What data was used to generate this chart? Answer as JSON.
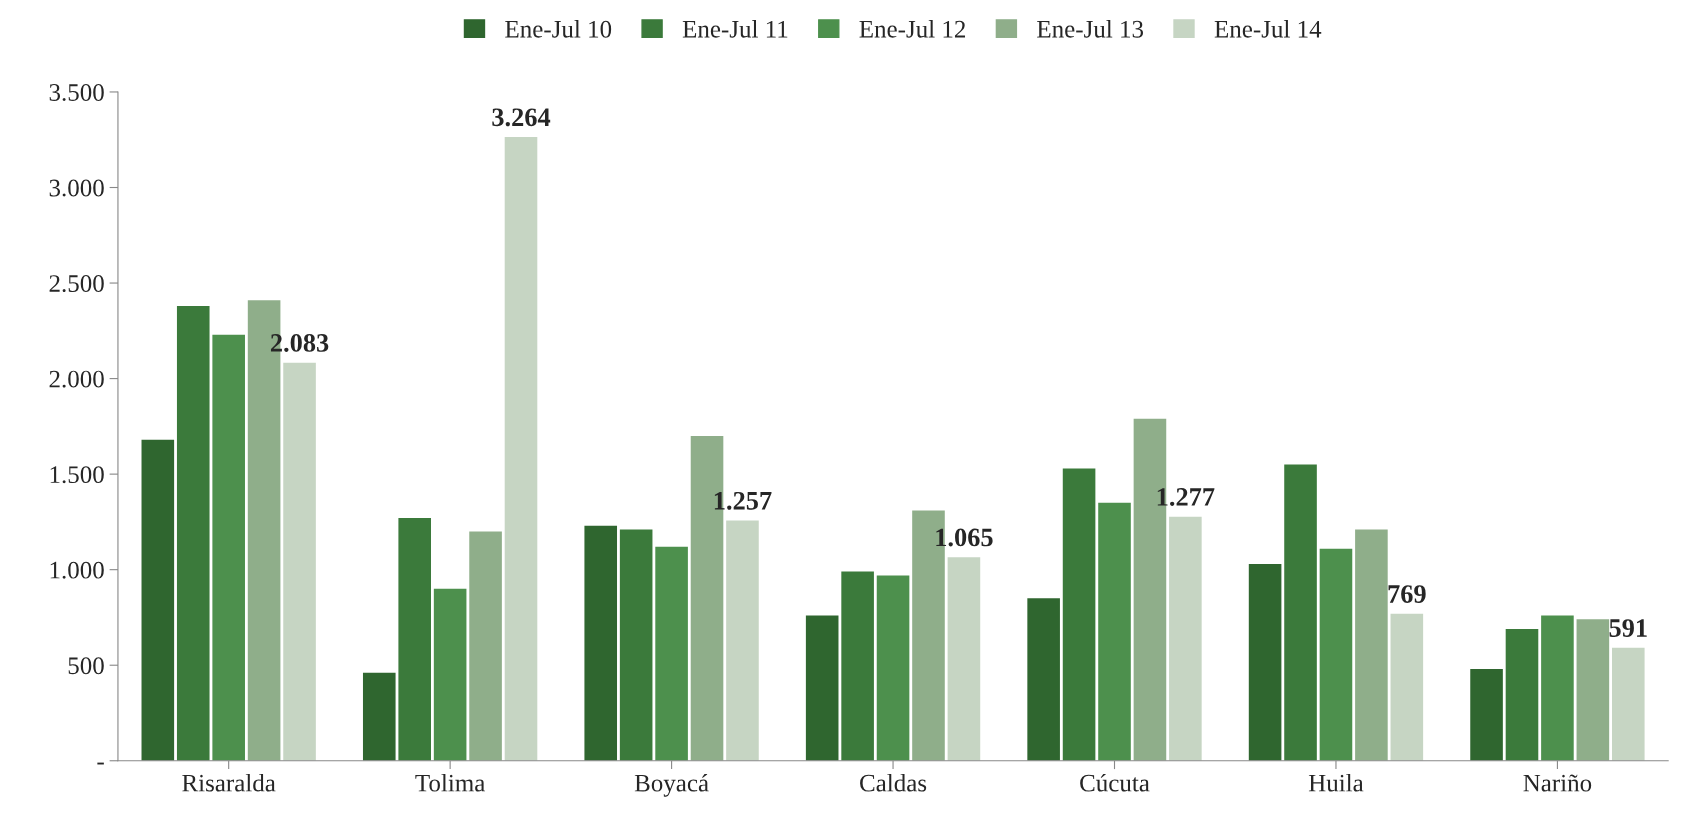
{
  "chart_data": {
    "type": "bar",
    "categories": [
      "Risaralda",
      "Tolima",
      "Boyacá",
      "Caldas",
      "Cúcuta",
      "Huila",
      "Nariño"
    ],
    "series": [
      {
        "name": "Ene-Jul 10",
        "color": "#2f662f",
        "values": [
          1680,
          460,
          1230,
          760,
          850,
          1030,
          480
        ]
      },
      {
        "name": "Ene-Jul 11",
        "color": "#3b7a3b",
        "values": [
          2380,
          1270,
          1210,
          990,
          1530,
          1550,
          690
        ]
      },
      {
        "name": "Ene-Jul 12",
        "color": "#4d904d",
        "values": [
          2230,
          900,
          1120,
          970,
          1350,
          1110,
          760
        ]
      },
      {
        "name": "Ene-Jul 13",
        "color": "#8fae8a",
        "values": [
          2410,
          1200,
          1700,
          1310,
          1790,
          1210,
          740
        ]
      },
      {
        "name": "Ene-Jul 14",
        "color": "#c6d5c3",
        "values": [
          2083,
          3264,
          1257,
          1065,
          1277,
          769,
          591
        ],
        "value_labels": [
          "2.083",
          "3.264",
          "1.257",
          "1.065",
          "1.277",
          "769",
          "591"
        ]
      }
    ],
    "ylim": [
      0,
      3500
    ],
    "yticks": [
      {
        "value": 0,
        "label": "-"
      },
      {
        "value": 500,
        "label": "500"
      },
      {
        "value": 1000,
        "label": "1.000"
      },
      {
        "value": 1500,
        "label": "1.500"
      },
      {
        "value": 2000,
        "label": "2.000"
      },
      {
        "value": 2500,
        "label": "2.500"
      },
      {
        "value": 3000,
        "label": "3.000"
      },
      {
        "value": 3500,
        "label": "3.500"
      }
    ],
    "grid": false,
    "legend": "top"
  }
}
